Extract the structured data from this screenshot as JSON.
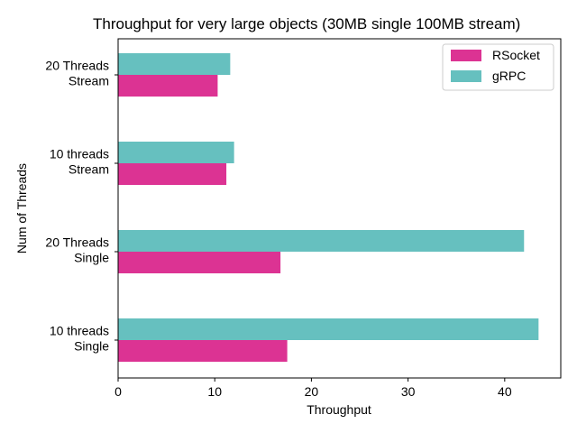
{
  "chart_data": {
    "type": "bar",
    "orientation": "horizontal",
    "title": "Throughput for very large objects (30MB single 100MB stream)",
    "xlabel": "Throughput",
    "ylabel": "Num of Threads",
    "xlim": [
      0,
      45.8
    ],
    "x_ticks": [
      0,
      10,
      20,
      30,
      40
    ],
    "categories": [
      [
        "10 threads",
        "Single"
      ],
      [
        "20 Threads",
        "Single"
      ],
      [
        "10 threads",
        "Stream"
      ],
      [
        "20 Threads",
        "Stream"
      ]
    ],
    "series": [
      {
        "name": "RSocket",
        "color": "#dc3393",
        "values": [
          17.5,
          16.8,
          11.2,
          10.3
        ]
      },
      {
        "name": "gRPC",
        "color": "#66c0bf",
        "values": [
          43.5,
          42.0,
          12.0,
          11.6
        ]
      }
    ],
    "legend_position": "top-right",
    "grid": false
  }
}
